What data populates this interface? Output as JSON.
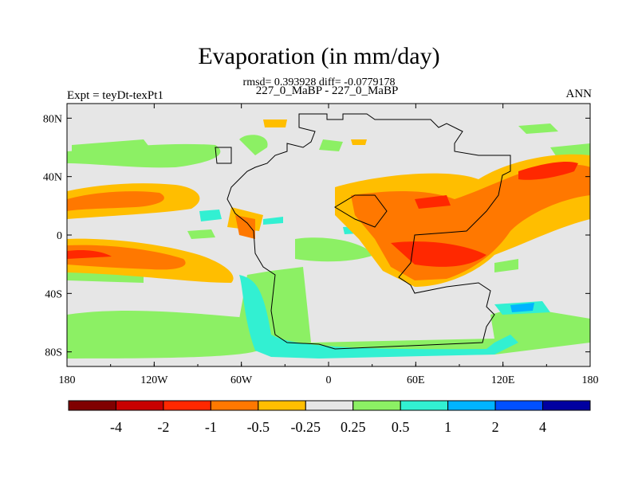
{
  "chart_data": {
    "type": "heatmap",
    "title": "Evaporation (in mm/day)",
    "stats_text": "rmsd= 0.393928 diff= -0.0779178",
    "subtitle": "227_0_MaBP - 227_0_MaBP",
    "left_label": "Expt = teyDt-texPt1",
    "right_label": "ANN",
    "x_ticks": [
      "180",
      "120W",
      "60W",
      "0",
      "60E",
      "120E",
      "180"
    ],
    "y_ticks": [
      "80N",
      "40N",
      "0",
      "40S",
      "80S"
    ],
    "x_range": [
      -180,
      180
    ],
    "y_range": [
      -90,
      90
    ],
    "colorbar": {
      "labels": [
        "-4",
        "-2",
        "-1",
        "-0.5",
        "-0.25",
        "0.25",
        "0.5",
        "1",
        "2",
        "4"
      ],
      "colors": [
        "#800000",
        "#c80000",
        "#ff2800",
        "#ff7800",
        "#ffbe00",
        "#e6e6e6",
        "#8cf064",
        "#32f0d2",
        "#00b4ff",
        "#0050ff",
        "#0000a0"
      ]
    }
  }
}
